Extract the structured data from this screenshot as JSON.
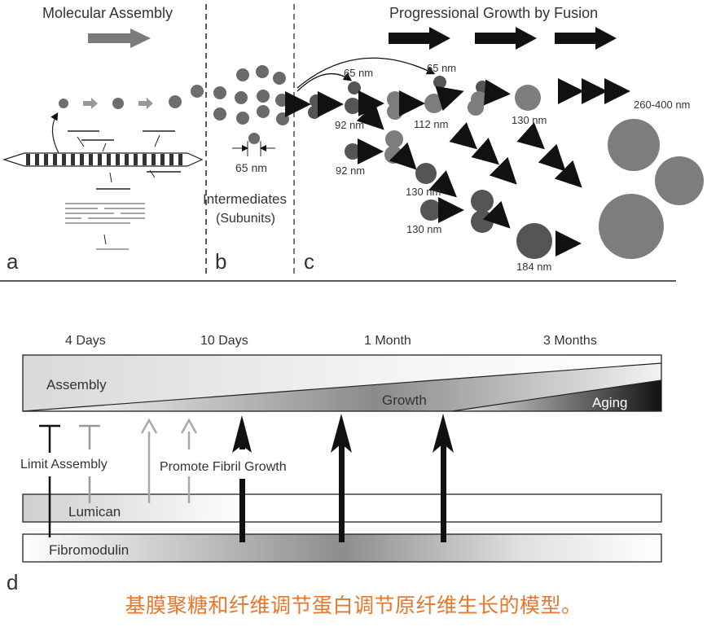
{
  "colors": {
    "caption": "#e8762b",
    "circle_light": "#7d7d7d",
    "circle_dark": "#555555",
    "arrow_black": "#111111",
    "arrow_gray": "#a0a0a0"
  },
  "top": {
    "molecular_assembly": "Molecular Assembly",
    "progressional_growth": "Progressional Growth by Fusion",
    "intermediates": "Intermediates",
    "subunits": "(Subunits)",
    "panel_a": "a",
    "panel_b": "b",
    "panel_c": "c",
    "sizes": {
      "s65b": "65 nm",
      "s65c1": "65 nm",
      "s65c2": "65 nm",
      "s92a": "92 nm",
      "s92b": "92 nm",
      "s112": "112 nm",
      "s130a": "130 nm",
      "s130b": "130 nm",
      "s130c": "130 nm",
      "s184": "184 nm",
      "s260": "260-400 nm"
    }
  },
  "bottom": {
    "timeline": [
      "4 Days",
      "10 Days",
      "1 Month",
      "3 Months"
    ],
    "assembly": "Assembly",
    "growth": "Growth",
    "aging": "Aging",
    "limit_assembly": "Limit Assembly",
    "promote_growth": "Promote Fibril Growth",
    "lumican": "Lumican",
    "fibromodulin": "Fibromodulin",
    "panel_d": "d"
  },
  "caption": "基膜聚糖和纤维调节蛋白调节原纤维生长的模型。"
}
